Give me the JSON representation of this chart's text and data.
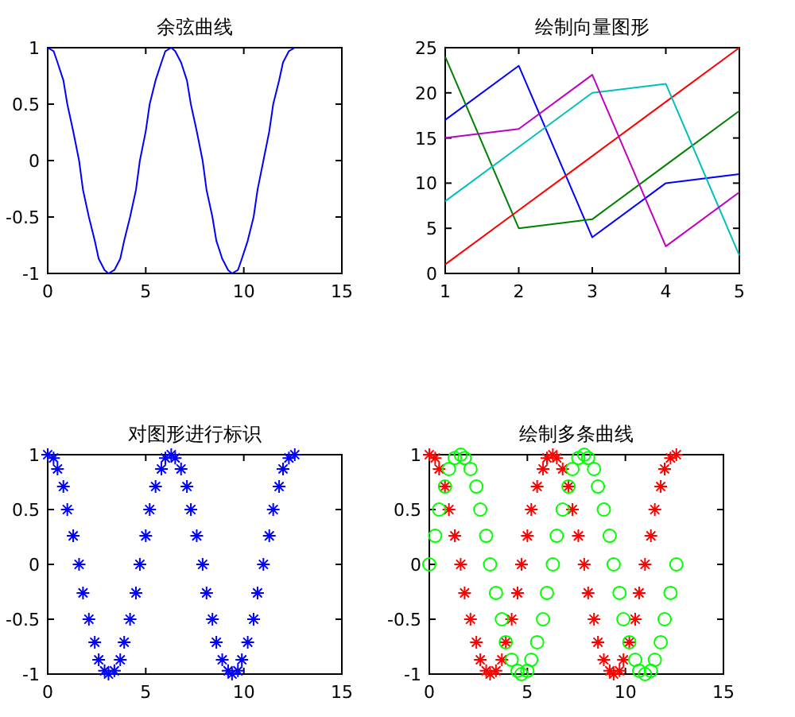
{
  "chart_data": [
    {
      "type": "line",
      "title": "余弦曲线",
      "xlim": [
        0,
        15
      ],
      "ylim": [
        -1,
        1
      ],
      "xticks": [
        0,
        5,
        10,
        15
      ],
      "yticks": [
        -1,
        -0.5,
        0,
        0.5,
        1
      ],
      "grid": false,
      "x": [
        0,
        0.3,
        0.5,
        0.8,
        1.0,
        1.3,
        1.6,
        1.8,
        2.1,
        2.4,
        2.6,
        2.9,
        3.1,
        3.4,
        3.7,
        3.9,
        4.2,
        4.5,
        4.7,
        5.0,
        5.2,
        5.5,
        5.8,
        6.0,
        6.3,
        6.5,
        6.8,
        7.1,
        7.3,
        7.6,
        7.9,
        8.1,
        8.4,
        8.6,
        8.9,
        9.2,
        9.4,
        9.7,
        9.9,
        10.2,
        10.5,
        10.7,
        11.0,
        11.3,
        11.5,
        11.8,
        12.0,
        12.3,
        12.6
      ],
      "series": [
        {
          "color": "#0000ff",
          "values": [
            1,
            0.97,
            0.87,
            0.71,
            0.5,
            0.26,
            0,
            -0.26,
            -0.5,
            -0.71,
            -0.87,
            -0.97,
            -1,
            -0.97,
            -0.87,
            -0.71,
            -0.5,
            -0.26,
            0,
            0.26,
            0.5,
            0.71,
            0.87,
            0.97,
            1,
            0.97,
            0.87,
            0.71,
            0.5,
            0.26,
            0,
            -0.26,
            -0.5,
            -0.71,
            -0.87,
            -0.97,
            -1,
            -0.97,
            -0.87,
            -0.71,
            -0.5,
            -0.26,
            0,
            0.26,
            0.5,
            0.71,
            0.87,
            0.97,
            1
          ]
        }
      ]
    },
    {
      "type": "line",
      "title": "绘制向量图形",
      "xlim": [
        1,
        5
      ],
      "ylim": [
        0,
        25
      ],
      "xticks": [
        1,
        2,
        3,
        4,
        5
      ],
      "yticks": [
        0,
        5,
        10,
        15,
        20,
        25
      ],
      "grid": false,
      "x": [
        1,
        2,
        3,
        4,
        5
      ],
      "series": [
        {
          "color": "#0000ff",
          "values": [
            17,
            23,
            4,
            10,
            11
          ]
        },
        {
          "color": "#008000",
          "values": [
            24,
            5,
            6,
            12,
            18
          ]
        },
        {
          "color": "#ff0000",
          "values": [
            1,
            7,
            13,
            19,
            25
          ]
        },
        {
          "color": "#00bfbf",
          "values": [
            8,
            14,
            20,
            21,
            2
          ]
        },
        {
          "color": "#bf00bf",
          "values": [
            15,
            16,
            22,
            3,
            9
          ]
        }
      ]
    },
    {
      "type": "scatter",
      "title": "对图形进行标识",
      "xlim": [
        0,
        15
      ],
      "ylim": [
        -1,
        1
      ],
      "xticks": [
        0,
        5,
        10,
        15
      ],
      "yticks": [
        -1,
        -0.5,
        0,
        0.5,
        1
      ],
      "grid": false,
      "marker": "cross",
      "x": [
        0,
        0.3,
        0.5,
        0.8,
        1.0,
        1.3,
        1.6,
        1.8,
        2.1,
        2.4,
        2.6,
        2.9,
        3.1,
        3.4,
        3.7,
        3.9,
        4.2,
        4.5,
        4.7,
        5.0,
        5.2,
        5.5,
        5.8,
        6.0,
        6.3,
        6.5,
        6.8,
        7.1,
        7.3,
        7.6,
        7.9,
        8.1,
        8.4,
        8.6,
        8.9,
        9.2,
        9.4,
        9.7,
        9.9,
        10.2,
        10.5,
        10.7,
        11.0,
        11.3,
        11.5,
        11.8,
        12.0,
        12.3,
        12.6
      ],
      "series": [
        {
          "color": "#0000ff",
          "values": [
            1,
            0.97,
            0.87,
            0.71,
            0.5,
            0.26,
            0,
            -0.26,
            -0.5,
            -0.71,
            -0.87,
            -0.97,
            -1,
            -0.97,
            -0.87,
            -0.71,
            -0.5,
            -0.26,
            0,
            0.26,
            0.5,
            0.71,
            0.87,
            0.97,
            1,
            0.97,
            0.87,
            0.71,
            0.5,
            0.26,
            0,
            -0.26,
            -0.5,
            -0.71,
            -0.87,
            -0.97,
            -1,
            -0.97,
            -0.87,
            -0.71,
            -0.5,
            -0.26,
            0,
            0.26,
            0.5,
            0.71,
            0.87,
            0.97,
            1
          ]
        }
      ]
    },
    {
      "type": "scatter",
      "title": "绘制多条曲线",
      "xlim": [
        0,
        15
      ],
      "ylim": [
        -1,
        1
      ],
      "xticks": [
        0,
        5,
        10,
        15
      ],
      "yticks": [
        -1,
        -0.5,
        0,
        0.5,
        1
      ],
      "grid": false,
      "x": [
        0,
        0.3,
        0.5,
        0.8,
        1.0,
        1.3,
        1.6,
        1.8,
        2.1,
        2.4,
        2.6,
        2.9,
        3.1,
        3.4,
        3.7,
        3.9,
        4.2,
        4.5,
        4.7,
        5.0,
        5.2,
        5.5,
        5.8,
        6.0,
        6.3,
        6.5,
        6.8,
        7.1,
        7.3,
        7.6,
        7.9,
        8.1,
        8.4,
        8.6,
        8.9,
        9.2,
        9.4,
        9.7,
        9.9,
        10.2,
        10.5,
        10.7,
        11.0,
        11.3,
        11.5,
        11.8,
        12.0,
        12.3,
        12.6
      ],
      "series": [
        {
          "color": "#ff0000",
          "marker": "cross",
          "values": [
            1,
            0.97,
            0.87,
            0.71,
            0.5,
            0.26,
            0,
            -0.26,
            -0.5,
            -0.71,
            -0.87,
            -0.97,
            -1,
            -0.97,
            -0.87,
            -0.71,
            -0.5,
            -0.26,
            0,
            0.26,
            0.5,
            0.71,
            0.87,
            0.97,
            1,
            0.97,
            0.87,
            0.71,
            0.5,
            0.26,
            0,
            -0.26,
            -0.5,
            -0.71,
            -0.87,
            -0.97,
            -1,
            -0.97,
            -0.87,
            -0.71,
            -0.5,
            -0.26,
            0,
            0.26,
            0.5,
            0.71,
            0.87,
            0.97,
            1
          ]
        },
        {
          "color": "#00ff00",
          "marker": "circle",
          "values": [
            0,
            0.26,
            0.5,
            0.71,
            0.87,
            0.97,
            1,
            0.97,
            0.87,
            0.71,
            0.5,
            0.26,
            0,
            -0.26,
            -0.5,
            -0.71,
            -0.87,
            -0.97,
            -1,
            -0.97,
            -0.87,
            -0.71,
            -0.5,
            -0.26,
            0,
            0.26,
            0.5,
            0.71,
            0.87,
            0.97,
            1,
            0.97,
            0.87,
            0.71,
            0.5,
            0.26,
            0,
            -0.26,
            -0.5,
            -0.71,
            -0.87,
            -0.97,
            -1,
            -0.97,
            -0.87,
            -0.71,
            -0.5,
            -0.26,
            0
          ]
        }
      ]
    }
  ]
}
